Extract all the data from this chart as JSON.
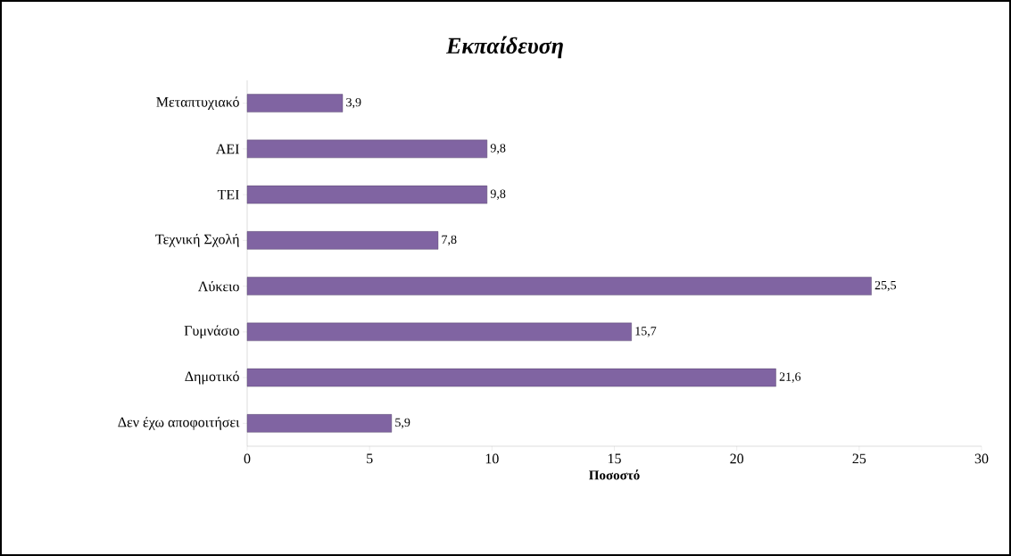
{
  "chart_data": {
    "type": "bar",
    "orientation": "horizontal",
    "title": "*Εκπαίδευση*",
    "xlabel": "Ποσοστό",
    "categories": [
      "Μεταπτυχιακό",
      "ΑΕΙ",
      "ΤΕΙ",
      "Τεχνική Σχολή",
      "Λύκειο",
      "Γυμνάσιο",
      "Δημοτικό",
      "Δεν έχω αποφοιτήσει"
    ],
    "values": [
      3.9,
      9.8,
      9.8,
      7.8,
      25.5,
      15.7,
      21.6,
      5.9
    ],
    "value_labels": [
      "3,9",
      "9,8",
      "9,8",
      "7,8",
      "25,5",
      "15,7",
      "21,6",
      "5,9"
    ],
    "color": "#8064a2",
    "xlim": [
      0,
      30
    ],
    "xticks": [
      0,
      5,
      10,
      15,
      20,
      25,
      30
    ]
  }
}
